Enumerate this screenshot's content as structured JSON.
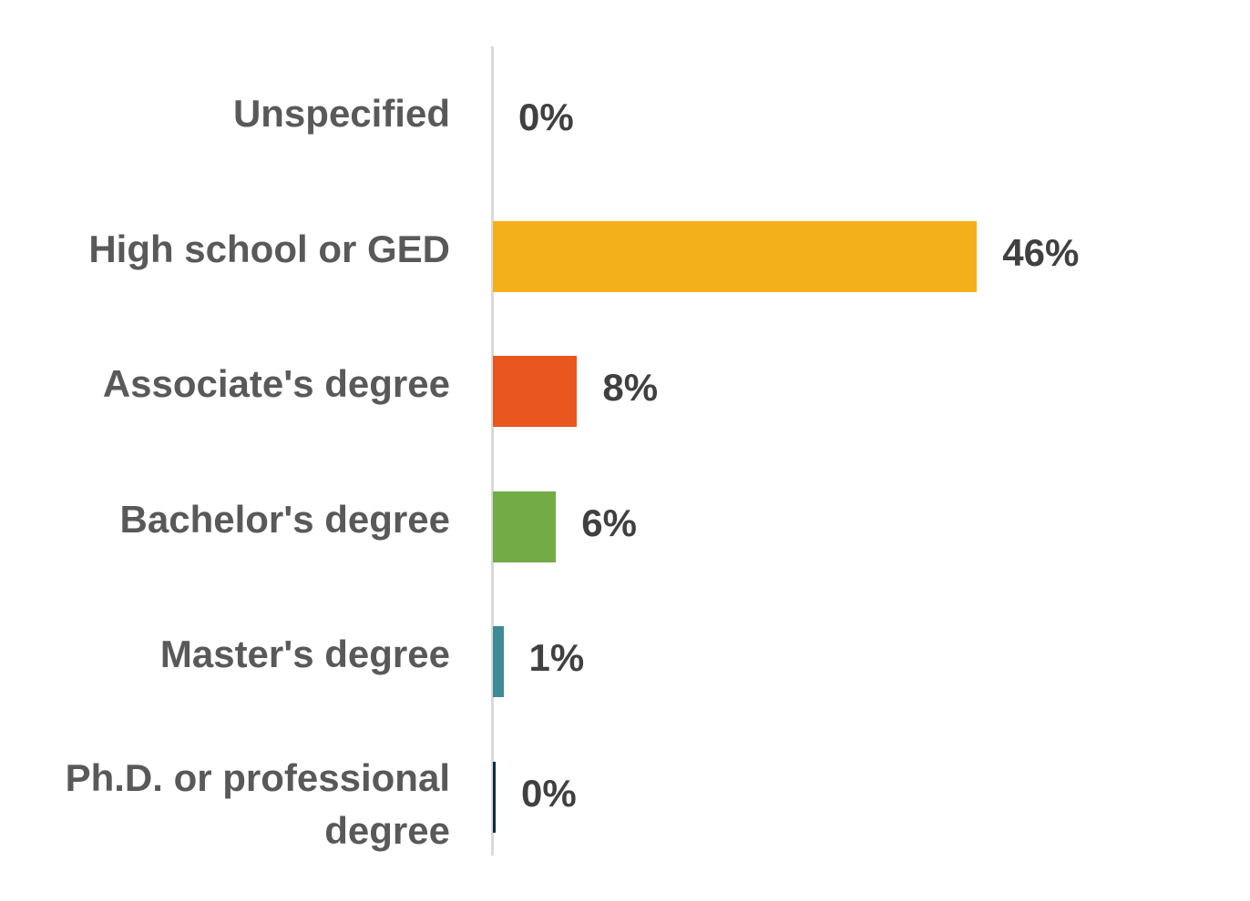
{
  "chart_data": {
    "type": "bar",
    "orientation": "horizontal",
    "categories": [
      "Unspecified",
      "High school or GED",
      "Associate's degree",
      "Bachelor's degree",
      "Master's degree",
      "Ph.D. or professional degree"
    ],
    "values": [
      0,
      46,
      8,
      6,
      1,
      0
    ],
    "value_labels": [
      "0%",
      "46%",
      "8%",
      "6%",
      "1%",
      "0%"
    ],
    "colors": [
      "#7f7f7f",
      "#f4b01b",
      "#e9561e",
      "#73ab47",
      "#3f8a96",
      "#0f2a3f"
    ],
    "xlim": [
      0,
      100
    ],
    "grid": false,
    "legend": "none"
  }
}
